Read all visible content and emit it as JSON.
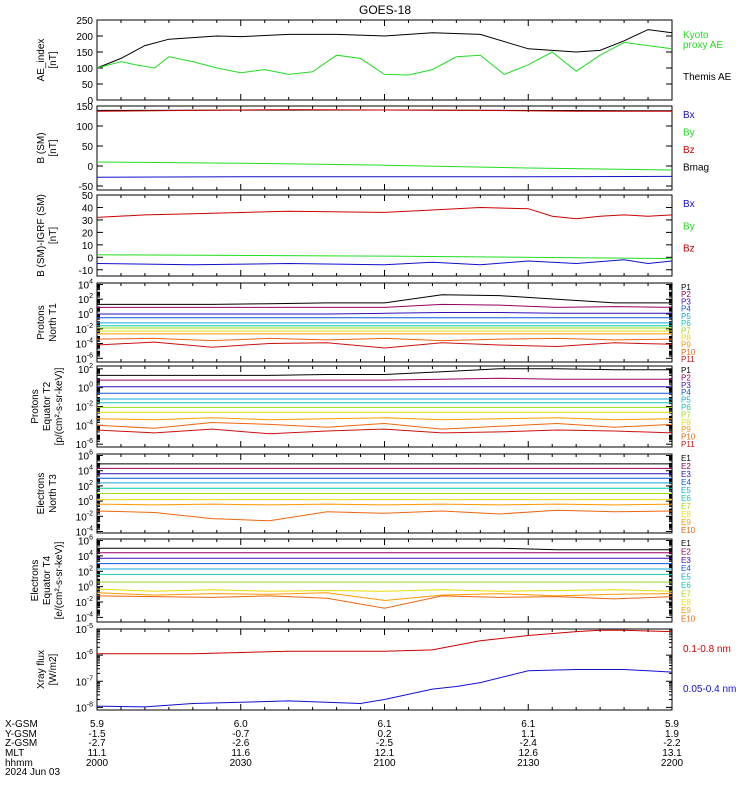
{
  "title": "GOES-18",
  "colors": {
    "black": "#000000",
    "green": "#22dd22",
    "red": "#cc0000",
    "blue": "#1010cc",
    "p": [
      "#000000",
      "#990066",
      "#3311bb",
      "#1155dd",
      "#11aadd",
      "#11ccaa",
      "#99dd11",
      "#eedd00",
      "#ff9900",
      "#ee6611",
      "#cc1111"
    ]
  },
  "footer": {
    "row_labels": [
      "X-GSM",
      "Y-GSM",
      "Z-GSM",
      "MLT",
      "hhmm",
      "2024 Jun 03"
    ],
    "columns": [
      {
        "xgsm": "5.9",
        "ygsm": "-1.5",
        "zgsm": "-2.7",
        "mlt": "11.1",
        "hhmm": "2000"
      },
      {
        "xgsm": "6.0",
        "ygsm": "-0.7",
        "zgsm": "-2.6",
        "mlt": "11.6",
        "hhmm": "2030"
      },
      {
        "xgsm": "6.1",
        "ygsm": "0.2",
        "zgsm": "-2.5",
        "mlt": "12.1",
        "hhmm": "2100"
      },
      {
        "xgsm": "6.1",
        "ygsm": "1.1",
        "zgsm": "-2.4",
        "mlt": "12.6",
        "hhmm": "2130"
      },
      {
        "xgsm": "5.9",
        "ygsm": "1.9",
        "zgsm": "-2.2",
        "mlt": "13.1",
        "hhmm": "2200"
      }
    ]
  },
  "chart_data": [
    {
      "type": "line",
      "ylabel": [
        "AE_index",
        "[nT]"
      ],
      "ylim": [
        0,
        250
      ],
      "scale": "linear",
      "yticks": [
        0,
        50,
        100,
        150,
        200,
        250
      ],
      "legend": [
        {
          "text": "Kyoto",
          "color": "green"
        },
        {
          "text": "proxy AE",
          "color": "green"
        },
        {
          "text": "Themis AE",
          "color": "black"
        }
      ],
      "series": [
        {
          "color": "black",
          "x": [
            0,
            5,
            10,
            15,
            20,
            25,
            30,
            40,
            50,
            60,
            70,
            80,
            90,
            100,
            105,
            110,
            115,
            120
          ],
          "values": [
            100,
            130,
            170,
            190,
            195,
            200,
            198,
            205,
            205,
            200,
            210,
            205,
            160,
            150,
            155,
            185,
            220,
            210
          ]
        },
        {
          "color": "green",
          "x": [
            0,
            5,
            8,
            12,
            15,
            20,
            25,
            30,
            35,
            40,
            45,
            50,
            55,
            60,
            65,
            70,
            75,
            80,
            85,
            90,
            95,
            100,
            105,
            110,
            115,
            120
          ],
          "values": [
            100,
            120,
            110,
            100,
            135,
            120,
            100,
            85,
            95,
            80,
            88,
            140,
            130,
            80,
            78,
            95,
            135,
            140,
            80,
            110,
            150,
            90,
            140,
            180,
            170,
            160
          ]
        }
      ]
    },
    {
      "type": "line",
      "ylabel": [
        "B (SM)",
        "[nT]"
      ],
      "ylim": [
        -60,
        150
      ],
      "scale": "linear",
      "yticks": [
        -50,
        0,
        50,
        100,
        150
      ],
      "legend": [
        {
          "text": "Bx",
          "color": "blue"
        },
        {
          "text": "By",
          "color": "green"
        },
        {
          "text": "Bz",
          "color": "red"
        },
        {
          "text": "Bmag",
          "color": "black"
        }
      ],
      "series": [
        {
          "color": "black",
          "x": [
            0,
            60,
            120
          ],
          "values": [
            139,
            140,
            138
          ]
        },
        {
          "color": "red",
          "x": [
            0,
            20,
            40,
            60,
            80,
            100,
            120
          ],
          "values": [
            137,
            139,
            141,
            140,
            139,
            137,
            137
          ]
        },
        {
          "color": "green",
          "x": [
            0,
            30,
            60,
            90,
            120
          ],
          "values": [
            10,
            7,
            2,
            -5,
            -10
          ]
        },
        {
          "color": "blue",
          "x": [
            0,
            30,
            60,
            90,
            120
          ],
          "values": [
            -28,
            -27,
            -27,
            -27,
            -26
          ]
        }
      ]
    },
    {
      "type": "line",
      "ylabel": [
        "B (SM)-IGRF (SM)",
        "[nT]"
      ],
      "ylim": [
        -15,
        50
      ],
      "scale": "linear",
      "yticks": [
        -10,
        0,
        10,
        20,
        30,
        40,
        50
      ],
      "legend": [
        {
          "text": "Bx",
          "color": "blue"
        },
        {
          "text": "By",
          "color": "green"
        },
        {
          "text": "Bz",
          "color": "red"
        }
      ],
      "series": [
        {
          "color": "red",
          "x": [
            0,
            10,
            20,
            40,
            60,
            70,
            80,
            90,
            95,
            100,
            105,
            110,
            115,
            120
          ],
          "values": [
            32,
            34,
            35,
            37,
            36,
            38,
            40,
            39,
            33,
            31,
            33,
            34,
            33,
            34
          ]
        },
        {
          "color": "green",
          "x": [
            0,
            60,
            120
          ],
          "values": [
            2,
            1,
            -1
          ]
        },
        {
          "color": "blue",
          "x": [
            0,
            20,
            40,
            60,
            70,
            80,
            90,
            100,
            110,
            115,
            120
          ],
          "values": [
            -5,
            -6,
            -5,
            -6,
            -4,
            -6,
            -3,
            -5,
            -2,
            -5,
            -3
          ]
        }
      ]
    },
    {
      "type": "line",
      "ylabel": [
        "Protons",
        "North T1"
      ],
      "ylim_exp": [
        -6.5,
        4.2
      ],
      "scale": "log",
      "ytick_exps": [
        -6,
        -4,
        -2,
        0,
        2,
        4
      ],
      "legend": [
        "P1",
        "P2",
        "P3",
        "P4",
        "P5",
        "P6",
        "P7",
        "P8",
        "P9",
        "P10",
        "P11"
      ],
      "levels": [
        [
          1.3,
          1.3,
          1.3,
          1.4,
          1.5,
          1.5,
          2.6,
          2.5,
          2.0,
          1.5,
          1.5
        ],
        [
          0.9,
          0.9,
          0.9,
          0.9,
          0.9,
          0.9,
          1.3,
          1.2,
          0.9,
          1.0,
          0.9
        ],
        [
          0.0,
          0.0,
          0.0,
          0.0,
          0.0,
          0.1,
          0.2,
          0.2,
          0.1,
          0.1,
          0.1
        ],
        [
          -0.5,
          -0.5,
          -0.5,
          -0.5,
          -0.5,
          -0.5,
          -0.5,
          -0.5,
          -0.5,
          -0.5,
          -0.5
        ],
        [
          -1.2,
          -1.2,
          -1.2,
          -1.2,
          -1.2,
          -1.2,
          -1.2,
          -1.2,
          -1.2,
          -1.2,
          -1.2
        ],
        [
          -1.6,
          -1.6,
          -1.6,
          -1.6,
          -1.6,
          -1.6,
          -1.6,
          -1.6,
          -1.6,
          -1.6,
          -1.6
        ],
        [
          -1.9,
          -1.9,
          -1.9,
          -1.9,
          -1.9,
          -1.9,
          -1.9,
          -1.9,
          -1.9,
          -1.9,
          -1.9
        ],
        [
          -2.3,
          -2.3,
          -2.3,
          -2.3,
          -2.3,
          -2.3,
          -2.3,
          -2.3,
          -2.3,
          -2.3,
          -2.3
        ],
        [
          -2.7,
          -2.7,
          -2.7,
          -2.7,
          -2.7,
          -2.7,
          -2.7,
          -2.7,
          -2.7,
          -2.7,
          -2.7
        ],
        [
          -3.4,
          -3.3,
          -3.6,
          -3.3,
          -3.5,
          -3.3,
          -3.6,
          -3.4,
          -3.3,
          -3.5,
          -3.4
        ],
        [
          -4.2,
          -3.8,
          -4.5,
          -4.0,
          -3.9,
          -4.6,
          -3.9,
          -4.2,
          -4.4,
          -3.9,
          -4.1
        ]
      ]
    },
    {
      "type": "line",
      "ylabel": [
        "Protons",
        "Equator T2",
        "[p/(cm²-s-sr-keV)]"
      ],
      "ylim_exp": [
        -6.3,
        2.3
      ],
      "scale": "log",
      "ytick_exps": [
        -6,
        -4,
        -2,
        0,
        2
      ],
      "legend": [
        "P1",
        "P2",
        "P3",
        "P4",
        "P5",
        "P6",
        "P7",
        "P8",
        "P9",
        "P10",
        "P11"
      ],
      "levels": [
        [
          1.3,
          1.3,
          1.3,
          1.3,
          1.4,
          1.4,
          1.7,
          2.0,
          2.0,
          1.9,
          1.9
        ],
        [
          0.8,
          0.8,
          0.8,
          0.8,
          0.8,
          0.8,
          0.9,
          1.0,
          0.9,
          0.9,
          0.9
        ],
        [
          0.1,
          0.1,
          0.1,
          0.1,
          0.1,
          0.1,
          0.1,
          0.1,
          0.1,
          0.1,
          0.1
        ],
        [
          -0.6,
          -0.6,
          -0.6,
          -0.6,
          -0.6,
          -0.6,
          -0.6,
          -0.6,
          -0.6,
          -0.6,
          -0.6
        ],
        [
          -1.2,
          -1.2,
          -1.2,
          -1.2,
          -1.2,
          -1.2,
          -1.2,
          -1.2,
          -1.2,
          -1.2,
          -1.2
        ],
        [
          -1.6,
          -1.6,
          -1.6,
          -1.6,
          -1.6,
          -1.6,
          -1.6,
          -1.6,
          -1.6,
          -1.6,
          -1.6
        ],
        [
          -2.1,
          -2.1,
          -2.1,
          -2.1,
          -2.1,
          -2.1,
          -2.1,
          -2.1,
          -2.1,
          -2.1,
          -2.1
        ],
        [
          -2.6,
          -2.6,
          -2.6,
          -2.6,
          -2.6,
          -2.6,
          -2.6,
          -2.6,
          -2.6,
          -2.6,
          -2.6
        ],
        [
          -3.3,
          -3.4,
          -3.2,
          -3.4,
          -3.3,
          -3.2,
          -3.4,
          -3.3,
          -3.2,
          -3.4,
          -3.3
        ],
        [
          -4.0,
          -4.3,
          -3.7,
          -3.9,
          -4.2,
          -3.8,
          -4.4,
          -4.1,
          -3.8,
          -4.2,
          -3.9
        ],
        [
          -4.5,
          -4.8,
          -4.4,
          -4.9,
          -4.6,
          -4.4,
          -4.8,
          -4.7,
          -4.5,
          -4.6,
          -4.8
        ]
      ]
    },
    {
      "type": "line",
      "ylabel": [
        "Electrons",
        "North T3"
      ],
      "ylim_exp": [
        -4.2,
        6.2
      ],
      "scale": "log",
      "ytick_exps": [
        -4,
        -2,
        0,
        2,
        4,
        6
      ],
      "legend": [
        "E1",
        "E2",
        "E3",
        "E4",
        "E5",
        "E6",
        "E7",
        "E8",
        "E9",
        "E10"
      ],
      "levels": [
        [
          4.9,
          4.9,
          4.9,
          4.9,
          4.9,
          4.9,
          4.9,
          4.9,
          4.9,
          4.9,
          4.9
        ],
        [
          4.3,
          4.3,
          4.3,
          4.3,
          4.3,
          4.3,
          4.3,
          4.3,
          4.3,
          4.3,
          4.3
        ],
        [
          3.6,
          3.6,
          3.6,
          3.6,
          3.6,
          3.6,
          3.6,
          3.6,
          3.6,
          3.6,
          3.6
        ],
        [
          3.0,
          3.0,
          3.0,
          3.0,
          3.0,
          3.0,
          3.0,
          3.0,
          3.0,
          3.0,
          3.0
        ],
        [
          2.4,
          2.4,
          2.4,
          2.4,
          2.4,
          2.4,
          2.4,
          2.4,
          2.4,
          2.4,
          2.4
        ],
        [
          1.7,
          1.7,
          1.7,
          1.7,
          1.7,
          1.7,
          1.7,
          1.7,
          1.7,
          1.7,
          1.7
        ],
        [
          1.0,
          1.0,
          1.0,
          1.0,
          1.0,
          1.0,
          1.0,
          1.0,
          1.0,
          1.0,
          1.0
        ],
        [
          0.2,
          0.2,
          0.2,
          0.2,
          0.2,
          0.2,
          0.2,
          0.2,
          0.2,
          0.2,
          0.2
        ],
        [
          -0.4,
          -0.5,
          -0.4,
          -0.5,
          -0.4,
          -0.5,
          -0.4,
          -0.5,
          -0.4,
          -0.5,
          -0.4
        ],
        [
          -1.3,
          -1.5,
          -2.3,
          -2.6,
          -1.4,
          -1.6,
          -1.3,
          -1.7,
          -1.2,
          -1.4,
          -1.3
        ]
      ]
    },
    {
      "type": "line",
      "ylabel": [
        "Electrons",
        "Equator T4",
        "[e/(cm²-s-sr-keV)]"
      ],
      "ylim_exp": [
        -4.6,
        6.2
      ],
      "scale": "log",
      "ytick_exps": [
        -4,
        -2,
        0,
        2,
        4,
        6
      ],
      "legend": [
        "E1",
        "E2",
        "E3",
        "E4",
        "E5",
        "E6",
        "E7",
        "E8",
        "E9",
        "E10"
      ],
      "levels": [
        [
          5.0,
          5.0,
          5.0,
          5.0,
          5.0,
          5.0,
          5.0,
          5.0,
          4.8,
          4.8,
          4.8
        ],
        [
          4.4,
          4.4,
          4.4,
          4.4,
          4.4,
          4.4,
          4.4,
          4.4,
          4.4,
          4.4,
          4.4
        ],
        [
          3.7,
          3.7,
          3.7,
          3.7,
          3.7,
          3.7,
          3.7,
          3.7,
          3.7,
          3.7,
          3.7
        ],
        [
          3.0,
          3.0,
          3.0,
          3.0,
          3.0,
          3.0,
          3.0,
          3.0,
          3.0,
          3.0,
          3.0
        ],
        [
          2.3,
          2.3,
          2.3,
          2.3,
          2.3,
          2.3,
          2.3,
          2.3,
          2.3,
          2.3,
          2.3
        ],
        [
          1.6,
          1.6,
          1.6,
          1.6,
          1.6,
          1.6,
          1.6,
          1.6,
          1.6,
          1.6,
          1.6
        ],
        [
          0.6,
          0.6,
          0.6,
          0.6,
          0.6,
          0.6,
          0.6,
          0.6,
          0.6,
          0.6,
          0.6
        ],
        [
          -0.3,
          -0.6,
          -0.4,
          -0.6,
          -0.5,
          -0.6,
          -0.4,
          -0.6,
          -0.5,
          -0.4,
          -0.6
        ],
        [
          -0.8,
          -1.1,
          -0.9,
          -1.0,
          -0.8,
          -1.8,
          -1.1,
          -0.9,
          -1.2,
          -1.0,
          -0.9
        ],
        [
          -1.2,
          -1.3,
          -1.4,
          -1.2,
          -1.5,
          -2.8,
          -1.2,
          -1.4,
          -1.3,
          -1.6,
          -1.3
        ]
      ]
    },
    {
      "type": "line",
      "ylabel": [
        "Xray flux",
        "[W/m2]"
      ],
      "ylim_exp": [
        -8.1,
        -5.0
      ],
      "scale": "log",
      "ytick_exps": [
        -8,
        -7,
        -6,
        -5
      ],
      "legend": [
        {
          "text": "0.1-0.8 nm",
          "color": "red"
        },
        {
          "text": "0.05-0.4 nm",
          "color": "blue"
        }
      ],
      "series": [
        {
          "color": "red",
          "x": [
            0,
            20,
            40,
            60,
            70,
            80,
            90,
            100,
            105,
            110,
            120
          ],
          "values": [
            -5.95,
            -5.95,
            -5.85,
            -5.85,
            -5.8,
            -5.45,
            -5.25,
            -5.1,
            -5.05,
            -5.05,
            -5.1
          ]
        },
        {
          "color": "blue",
          "x": [
            0,
            10,
            20,
            30,
            40,
            55,
            60,
            70,
            75,
            80,
            90,
            100,
            110,
            115,
            120
          ],
          "values": [
            -7.95,
            -7.98,
            -7.85,
            -7.8,
            -7.75,
            -7.85,
            -7.7,
            -7.3,
            -7.2,
            -7.05,
            -6.6,
            -6.55,
            -6.55,
            -6.6,
            -6.65
          ]
        }
      ]
    }
  ]
}
